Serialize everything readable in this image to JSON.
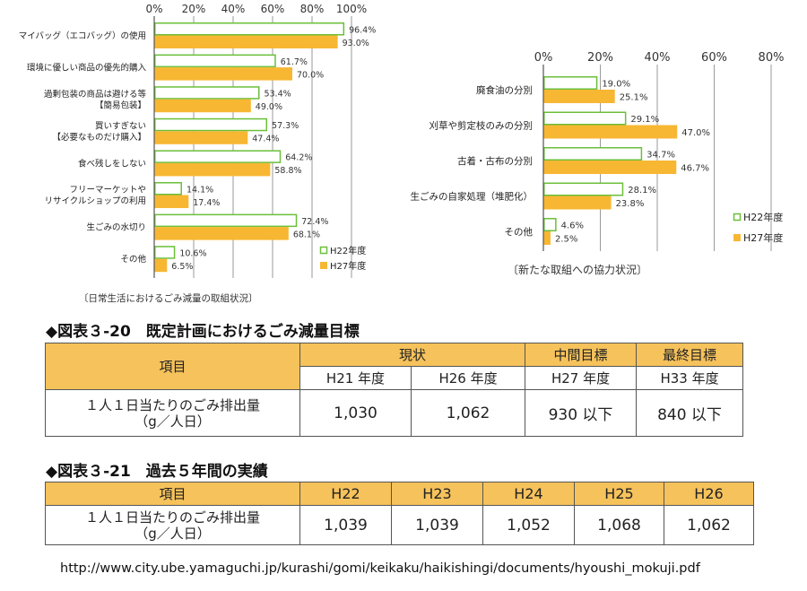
{
  "chart_data": [
    {
      "type": "bar",
      "orientation": "horizontal",
      "caption": "〔日常生活におけるごみ減量の取組状況〕",
      "x_ticks": [
        "0%",
        "20%",
        "40%",
        "60%",
        "80%",
        "100%"
      ],
      "xlim": [
        0,
        100
      ],
      "categories": [
        [
          "マイバッグ（エコバッグ）の使用"
        ],
        [
          "環境に優しい商品の優先的購入"
        ],
        [
          "過剰包装の商品は避ける等",
          "【簡易包装】"
        ],
        [
          "買いすぎない",
          "【必要なものだけ購入】"
        ],
        [
          "食べ残しをしない"
        ],
        [
          "フリーマーケットや",
          "リサイクルショップの利用"
        ],
        [
          "生ごみの水切り"
        ],
        [
          "その他"
        ]
      ],
      "series": [
        {
          "name": "H22年度",
          "values": [
            96.4,
            61.7,
            53.4,
            57.3,
            64.2,
            14.1,
            72.4,
            10.6
          ],
          "labels": [
            "96.4%",
            "61.7%",
            "53.4%",
            "57.3%",
            "64.2%",
            "14.1%",
            "72.4%",
            "10.6%"
          ]
        },
        {
          "name": "H27年度",
          "values": [
            93.0,
            70.0,
            49.0,
            47.4,
            58.8,
            17.4,
            68.1,
            6.5
          ],
          "labels": [
            "93.0%",
            "70.0%",
            "49.0%",
            "47.4%",
            "58.8%",
            "17.4%",
            "68.1%",
            "6.5%"
          ]
        }
      ],
      "colors": {
        "h22_fill": "#ffffff",
        "h22_stroke": "#6bbf3a",
        "h27": "#f7b733"
      },
      "legend_position": "bottom-right",
      "grid": true
    },
    {
      "type": "bar",
      "orientation": "horizontal",
      "caption": "〔新たな取組への協力状況〕",
      "x_ticks": [
        "0%",
        "20%",
        "40%",
        "60%",
        "80%"
      ],
      "xlim": [
        0,
        80
      ],
      "categories": [
        [
          "廃食油の分別"
        ],
        [
          "刈草や剪定枝のみの分別"
        ],
        [
          "古着・古布の分別"
        ],
        [
          "生ごみの自家処理（堆肥化）"
        ],
        [
          "その他"
        ]
      ],
      "series": [
        {
          "name": "H22年度",
          "values": [
            19.0,
            29.1,
            34.7,
            28.1,
            4.6
          ],
          "labels": [
            "19.0%",
            "29.1%",
            "34.7%",
            "28.1%",
            "4.6%"
          ]
        },
        {
          "name": "H27年度",
          "values": [
            25.1,
            47.0,
            46.7,
            23.8,
            2.5
          ],
          "labels": [
            "25.1%",
            "47.0%",
            "46.7%",
            "23.8%",
            "2.5%"
          ]
        }
      ],
      "colors": {
        "h22_fill": "#ffffff",
        "h22_stroke": "#6bbf3a",
        "h27": "#f7b733"
      },
      "legend_position": "right",
      "grid": true
    },
    {
      "type": "table",
      "title": "◆図表３-20　既定計画におけるごみ減量目標",
      "header_item": "項目",
      "groups": [
        "現状",
        "中間目標",
        "最終目標"
      ],
      "years": [
        "H21 年度",
        "H26 年度",
        "H27 年度",
        "H33 年度"
      ],
      "row_label": [
        "１人１日当たりのごみ排出量",
        "（g／人日）"
      ],
      "values": [
        "1,030",
        "1,062",
        "930 以下",
        "840 以下"
      ]
    },
    {
      "type": "table",
      "title": "◆図表３-21　過去５年間の実績",
      "header_item": "項目",
      "years": [
        "H22",
        "H23",
        "H24",
        "H25",
        "H26"
      ],
      "row_label": [
        "１人１日当たりのごみ排出量",
        "（g／人日）"
      ],
      "values": [
        "1,039",
        "1,039",
        "1,052",
        "1,068",
        "1,062"
      ]
    }
  ],
  "source_url": "http://www.city.ube.yamaguchi.jp/kurashi/gomi/keikaku/haikishingi/documents/hyoushi_mokuji.pdf"
}
